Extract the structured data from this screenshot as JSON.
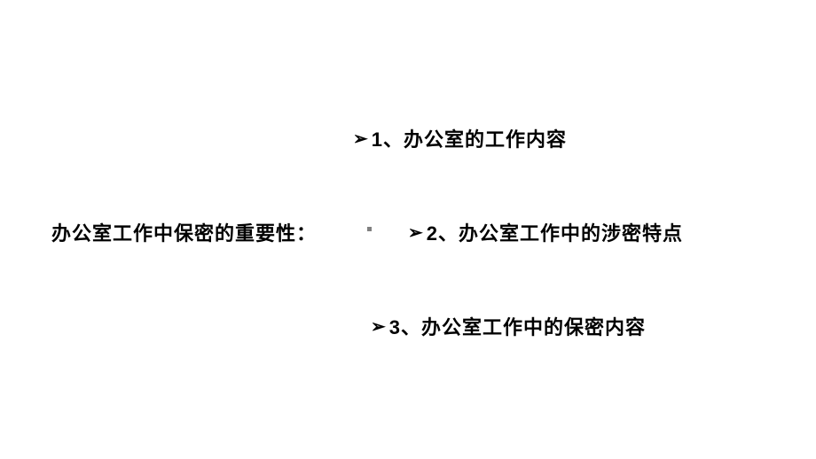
{
  "slide": {
    "left_title": "办公室工作中保密的重要性：",
    "items": [
      {
        "marker": "➢",
        "text": "1、办公室的工作内容"
      },
      {
        "marker": "➢",
        "text": "2、办公室工作中的涉密特点"
      },
      {
        "marker": "➢",
        "text": "3、办公室工作中的保密内容"
      }
    ],
    "colors": {
      "background": "#ffffff",
      "text": "#000000",
      "dot": "#808080"
    },
    "typography": {
      "title_fontsize": 22,
      "bullet_fontsize": 22,
      "font_weight": "bold",
      "font_family": "Microsoft YaHei"
    }
  }
}
